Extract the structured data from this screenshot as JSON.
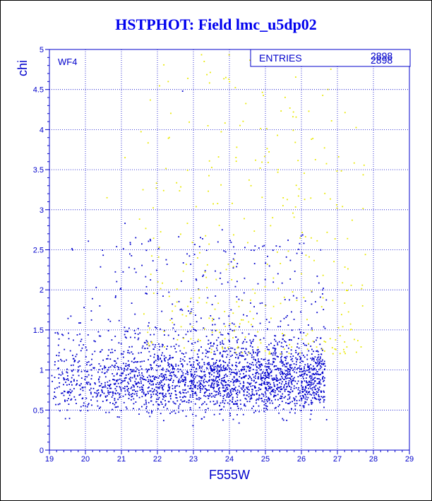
{
  "title": "HSTPHOT: Field lmc_u5dp02",
  "chart_data": {
    "type": "scatter",
    "panel_label": "WF4",
    "xlabel": "F555W",
    "ylabel": "chi",
    "xlim": [
      19,
      29
    ],
    "ylim": [
      0,
      5
    ],
    "x_ticks": [
      "19",
      "20",
      "21",
      "22",
      "23",
      "24",
      "25",
      "26",
      "27",
      "28",
      "29"
    ],
    "y_ticks": [
      "0",
      "0.5",
      "1",
      "1.5",
      "2",
      "2.5",
      "3",
      "3.5",
      "4",
      "4.5",
      "5"
    ],
    "grid": true,
    "stats_box": {
      "label": "ENTRIES",
      "value_1": "2898",
      "value_2": "2898"
    },
    "colors": {
      "primary_series": "#0000cc",
      "secondary_series": "#e8e800",
      "axis": "#0000cc"
    },
    "series": [
      {
        "color_name": "blue",
        "color": "#0000cc",
        "points_note_marked": [
          {
            "x": 19.6,
            "y": 0.72
          },
          {
            "x": 20.0,
            "y": 0.55
          },
          {
            "x": 20.3,
            "y": 2.03
          },
          {
            "x": 20.4,
            "y": 1.8
          },
          {
            "x": 20.7,
            "y": 0.82
          },
          {
            "x": 21.1,
            "y": 2.83
          },
          {
            "x": 21.4,
            "y": 0.6
          },
          {
            "x": 21.8,
            "y": 2.63
          },
          {
            "x": 22.7,
            "y": 4.48
          },
          {
            "x": 23.1,
            "y": 1.12
          },
          {
            "x": 23.8,
            "y": 2.75
          },
          {
            "x": 24.3,
            "y": 0.95
          },
          {
            "x": 24.8,
            "y": 0.9
          },
          {
            "x": 25.3,
            "y": 1.05
          },
          {
            "x": 25.8,
            "y": 0.8
          },
          {
            "x": 26.2,
            "y": 1.0
          },
          {
            "x": 26.5,
            "y": 0.62
          },
          {
            "x": 26.7,
            "y": 0.38
          }
        ]
      },
      {
        "color_name": "yellow",
        "color": "#e8e800",
        "points_note_marked": [
          {
            "x": 20.6,
            "y": 3.15
          },
          {
            "x": 21.1,
            "y": 3.65
          },
          {
            "x": 21.6,
            "y": 3.25
          },
          {
            "x": 22.3,
            "y": 4.6
          },
          {
            "x": 23.3,
            "y": 4.85
          },
          {
            "x": 23.9,
            "y": 4.65
          },
          {
            "x": 24.6,
            "y": 3.3
          },
          {
            "x": 25.2,
            "y": 2.9
          },
          {
            "x": 26.0,
            "y": 2.2
          },
          {
            "x": 26.6,
            "y": 1.9
          },
          {
            "x": 27.2,
            "y": 1.35
          },
          {
            "x": 27.7,
            "y": 1.8
          }
        ]
      }
    ]
  }
}
